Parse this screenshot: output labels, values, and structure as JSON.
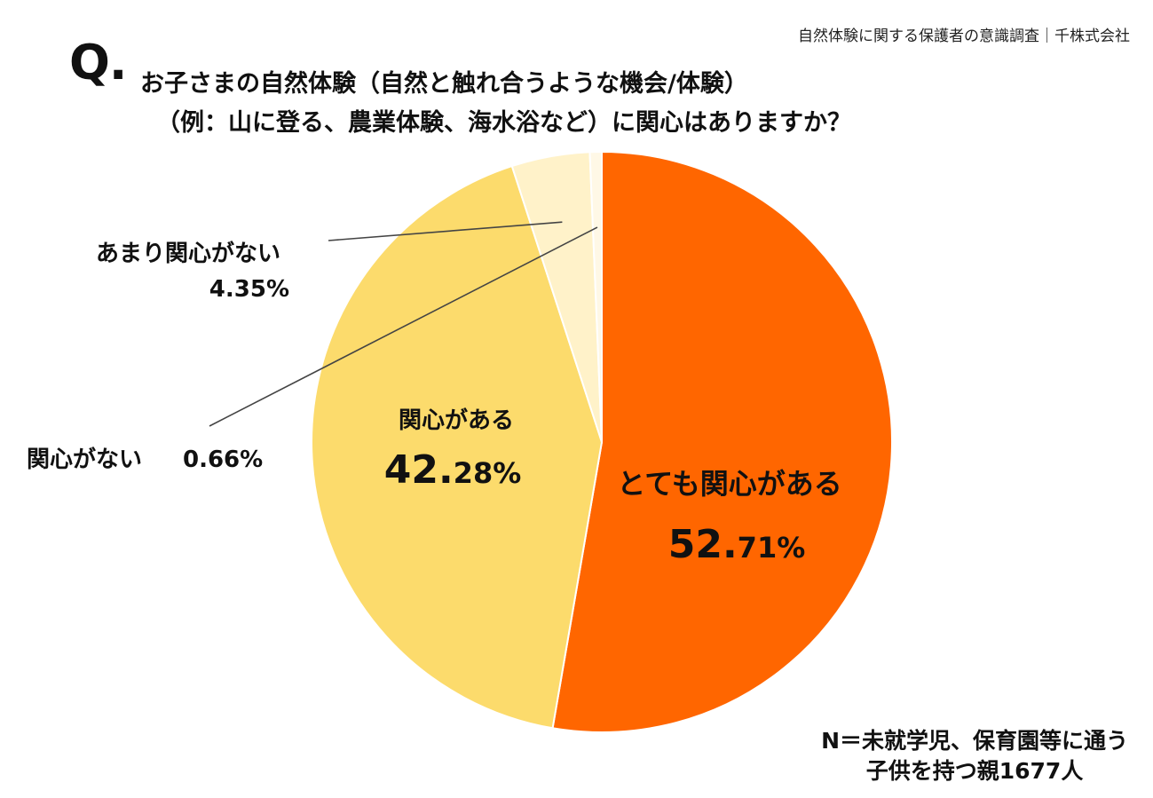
{
  "header": {
    "source": "自然体験に関する保護者の意識調査｜千株式会社"
  },
  "question": {
    "marker": "Q.",
    "line1": "お子さまの自然体験（自然と触れ合うような機会/体験）",
    "line2": "（例：山に登る、農業体験、海水浴など）に関心はありますか？"
  },
  "footnote": {
    "line1": "N＝未就学児、保育園等に通う",
    "line2": "子供を持つ親1677人"
  },
  "colors": {
    "very_interested": "#FF6600",
    "interested": "#FCDB6C",
    "not_very_interested": "#FFF2C9",
    "not_interested": "#FFF8E6",
    "leader_line": "#444444",
    "divider": "#ffffff"
  },
  "chart_data": {
    "type": "pie",
    "title": "",
    "start": "12 o'clock",
    "direction": "clockwise",
    "slices": [
      {
        "label": "とても関心がある",
        "value": 52.71,
        "value_int": "52.",
        "value_dec": "71%",
        "color": "#FF6600"
      },
      {
        "label": "関心がある",
        "value": 42.28,
        "value_int": "42.",
        "value_dec": "28%",
        "color": "#FCDB6C"
      },
      {
        "label": "あまり関心がない",
        "value": 4.35,
        "value_text": "4.35%",
        "color": "#FFF2C9"
      },
      {
        "label": "関心がない",
        "value": 0.66,
        "value_text": "0.66%",
        "color": "#FFF8E6"
      }
    ]
  }
}
